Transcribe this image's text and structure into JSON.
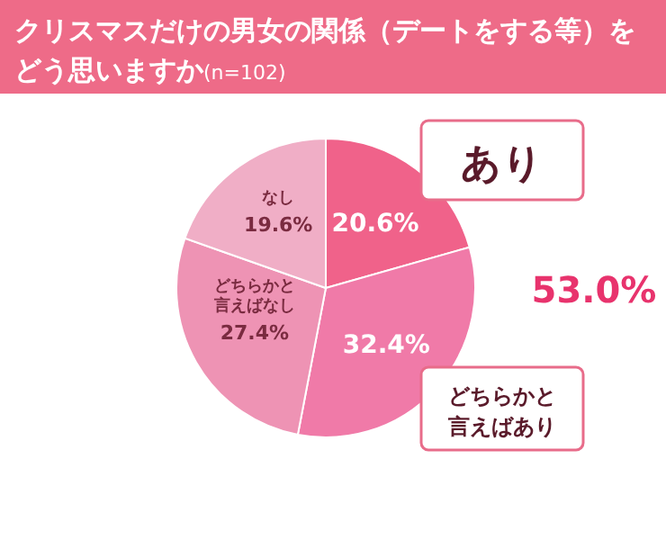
{
  "chart_data": {
    "type": "pie",
    "title": "クリスマスだけの男女の関係（デートをする等）をどう思いますか",
    "subtitle": "(n=102)",
    "categories": [
      "あり",
      "どちらかと言えばあり",
      "どちらかと言えばなし",
      "なし"
    ],
    "values": [
      20.6,
      32.4,
      27.4,
      19.6
    ],
    "colors": [
      "#f0628a",
      "#f07aa8",
      "#ee93b4",
      "#f0aec6"
    ],
    "value_labels": [
      "20.6%",
      "32.4%",
      "27.4%",
      "19.6%"
    ],
    "annotations": [
      "53.0%"
    ]
  }
}
